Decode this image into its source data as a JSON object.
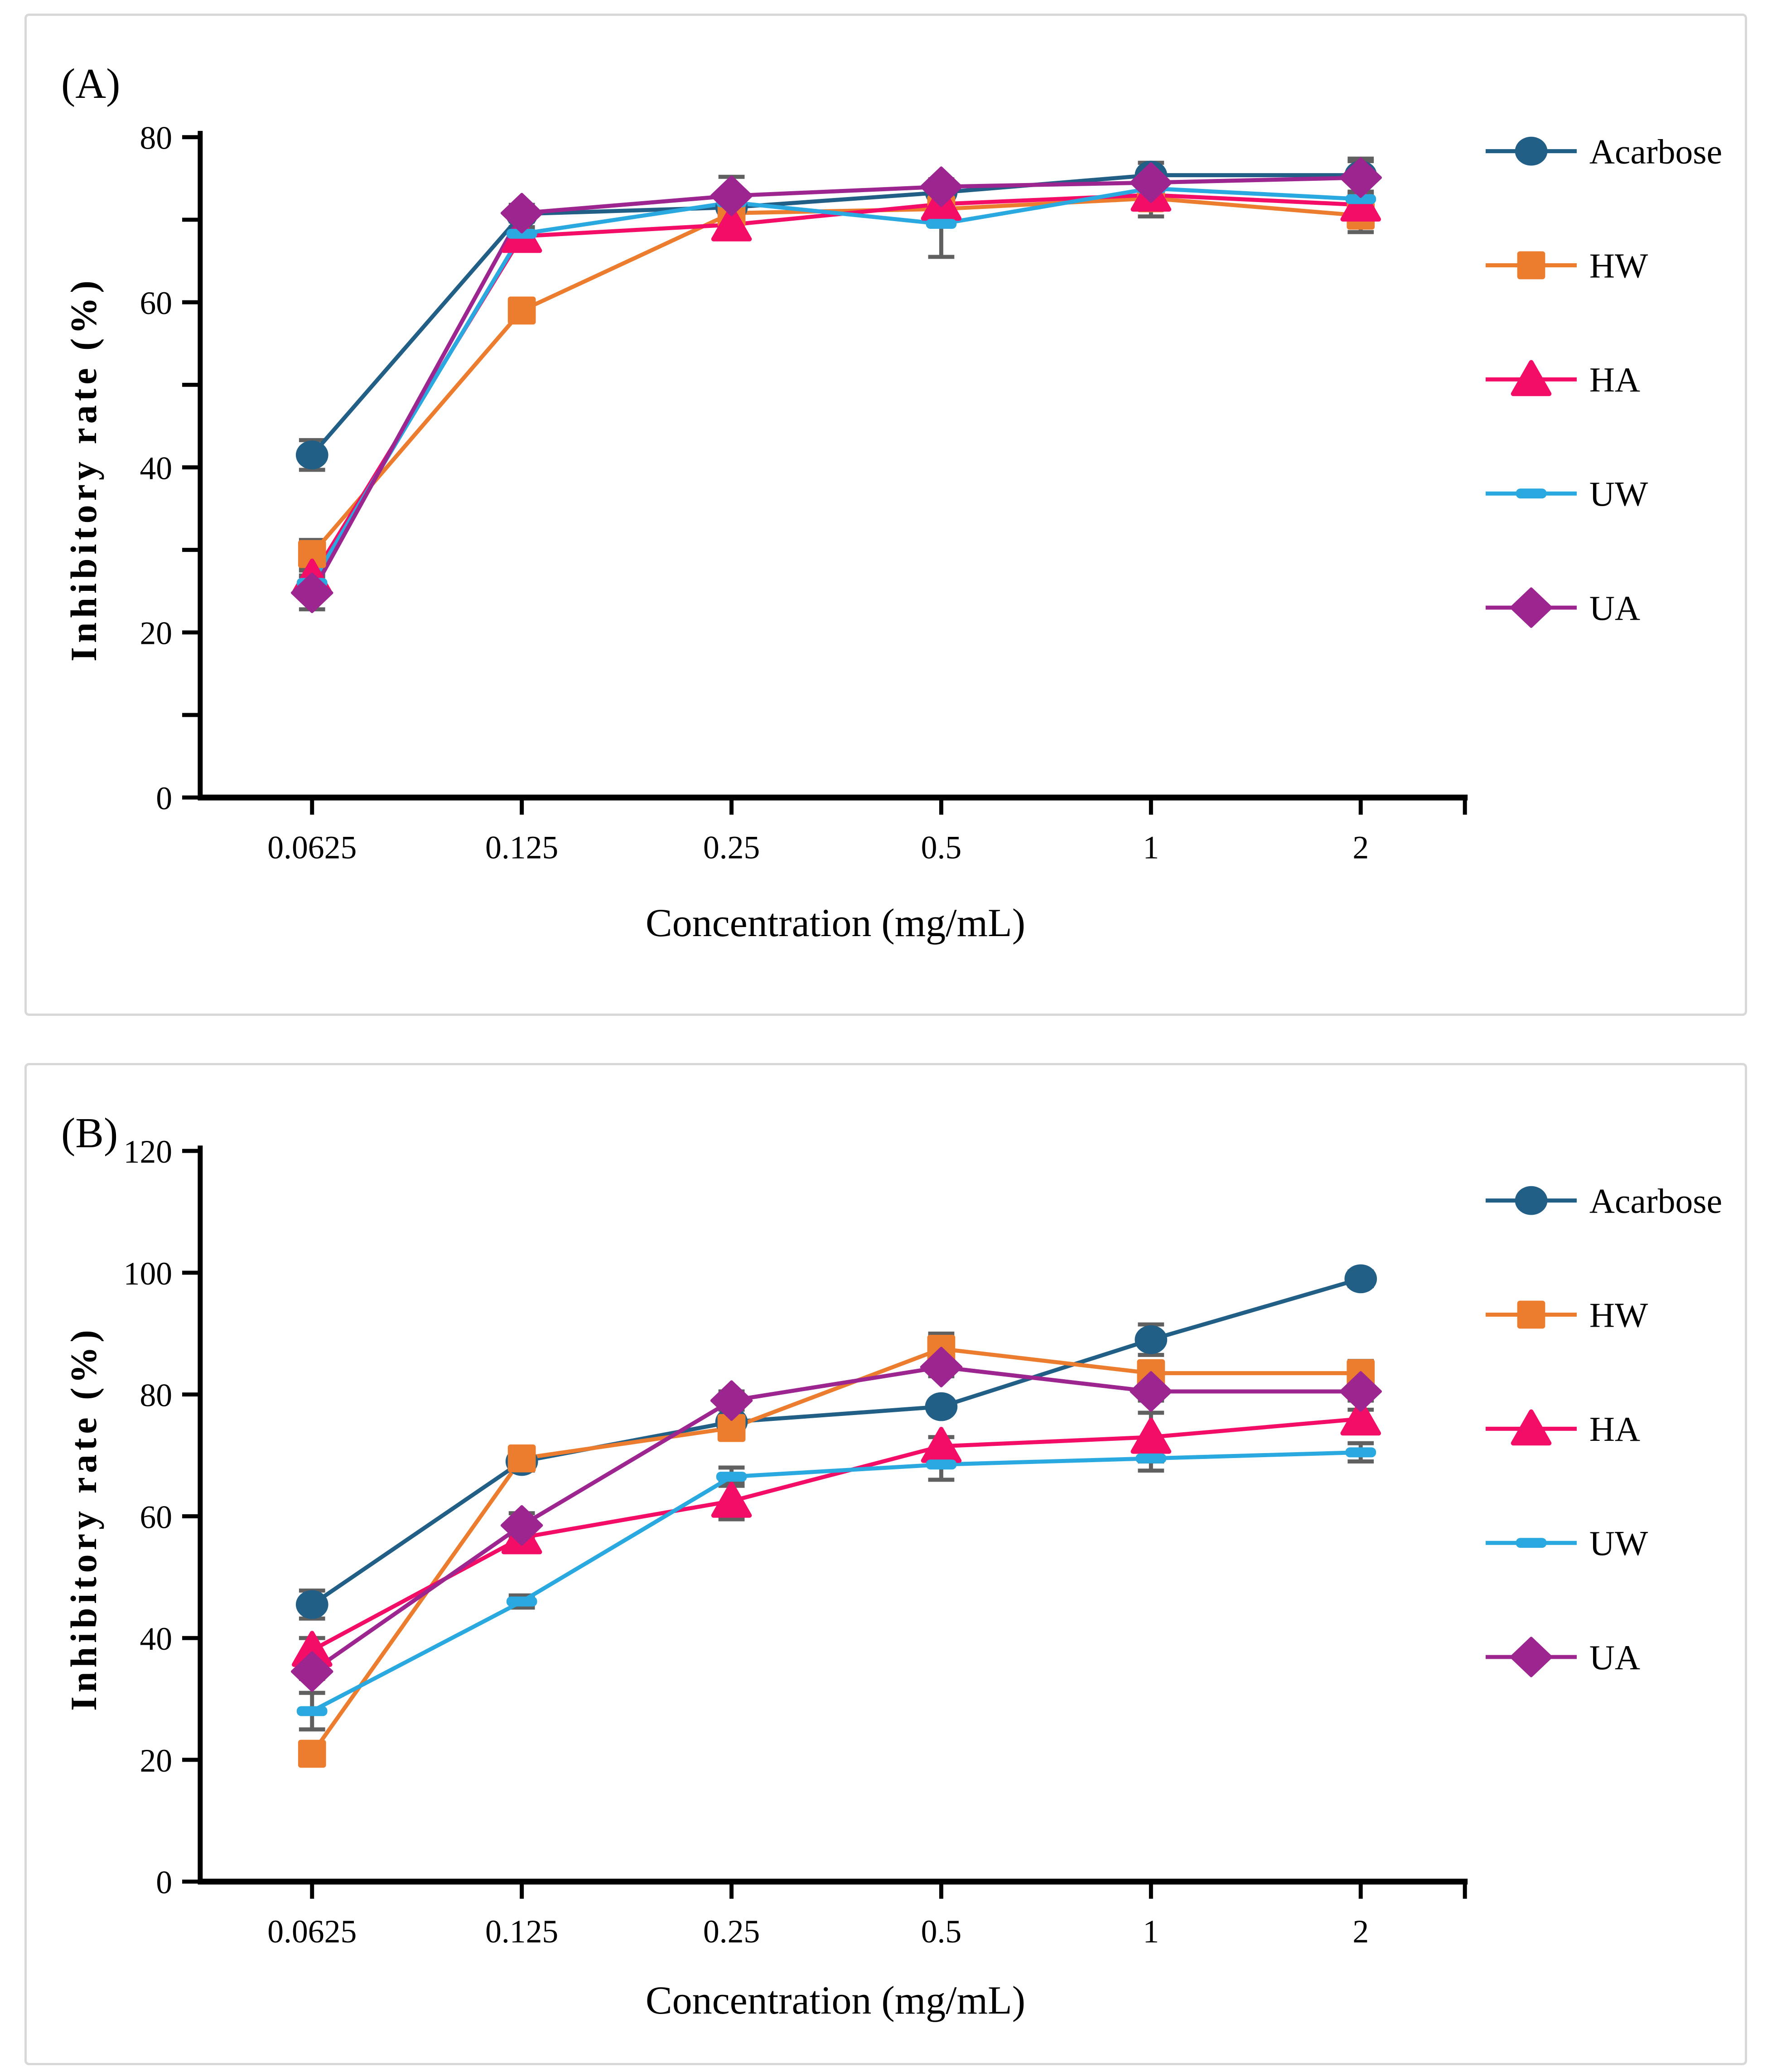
{
  "figure": {
    "panel_a": {
      "label": "(A)",
      "x_title": "Concentration (mg/mL)",
      "y_title": "Inhibitory rate (%)"
    },
    "panel_b": {
      "label": "(B)",
      "x_title": "Concentration (mg/mL)",
      "y_title": "Inhibitory rate (%)"
    }
  },
  "colors": {
    "axis": "#000000",
    "error_bar": "#606060",
    "panel_border": "#D8D8D8",
    "acarbose": "#215F86",
    "hw": "#EC7D2F",
    "ha": "#F30D66",
    "uw": "#29A9E0",
    "ua": "#9C2590"
  },
  "chart_data": [
    {
      "type": "line",
      "title": "(A)",
      "xlabel": "Concentration (mg/mL)",
      "ylabel": "Inhibitory rate (%)",
      "categories": [
        "0.0625",
        "0.125",
        "0.25",
        "0.5",
        "1",
        "2"
      ],
      "ylim": [
        0,
        80
      ],
      "yticks": [
        0,
        20,
        40,
        60,
        80
      ],
      "minor_yticks": [
        10,
        30,
        50,
        70
      ],
      "grid": false,
      "legend_position": "right",
      "error_bars": true,
      "series": [
        {
          "name": "Acarbose",
          "marker": "circle",
          "color": "#215F86",
          "values": [
            41.5,
            70.7,
            71.5,
            73.3,
            75.4,
            75.4
          ],
          "errors": [
            1.8,
            0.9,
            0.8,
            0.8,
            1.5,
            2.0
          ]
        },
        {
          "name": "HW",
          "marker": "square",
          "color": "#EC7D2F",
          "values": [
            29.5,
            59.0,
            70.8,
            71.3,
            72.6,
            70.5
          ],
          "errors": [
            1.7,
            0.9,
            0.8,
            0.8,
            2.2,
            2.0
          ]
        },
        {
          "name": "HA",
          "marker": "triangle",
          "color": "#F30D66",
          "values": [
            26.6,
            68.0,
            69.4,
            71.9,
            73.0,
            71.8
          ],
          "errors": [
            0.9,
            1.0,
            0.8,
            0.8,
            0.8,
            1.0
          ]
        },
        {
          "name": "UW",
          "marker": "dash",
          "color": "#29A9E0",
          "values": [
            26.0,
            68.3,
            72.1,
            69.5,
            73.8,
            72.5
          ],
          "errors": [
            0.9,
            0.8,
            0.8,
            4.0,
            0.8,
            0.8
          ]
        },
        {
          "name": "UA",
          "marker": "diamond",
          "color": "#9C2590",
          "values": [
            24.8,
            70.8,
            72.9,
            74.0,
            74.5,
            75.1
          ],
          "errors": [
            2.0,
            1.0,
            2.3,
            0.9,
            0.8,
            2.0
          ]
        }
      ]
    },
    {
      "type": "line",
      "title": "(B)",
      "xlabel": "Concentration (mg/mL)",
      "ylabel": "Inhibitory rate (%)",
      "categories": [
        "0.0625",
        "0.125",
        "0.25",
        "0.5",
        "1",
        "2"
      ],
      "ylim": [
        0,
        120
      ],
      "yticks": [
        0,
        20,
        40,
        60,
        80,
        100,
        120
      ],
      "minor_yticks": [],
      "grid": false,
      "legend_position": "right",
      "error_bars": true,
      "series": [
        {
          "name": "Acarbose",
          "marker": "circle",
          "color": "#215F86",
          "values": [
            45.5,
            69.0,
            75.5,
            78.0,
            89.0,
            99.0
          ],
          "errors": [
            2.3,
            1.5,
            1.0,
            1.0,
            2.5,
            1.2
          ]
        },
        {
          "name": "HW",
          "marker": "square",
          "color": "#EC7D2F",
          "values": [
            21.0,
            69.5,
            74.5,
            87.5,
            83.5,
            83.5
          ],
          "errors": [
            1.2,
            1.5,
            1.8,
            2.5,
            1.5,
            2.0
          ]
        },
        {
          "name": "HA",
          "marker": "triangle",
          "color": "#F30D66",
          "values": [
            38.0,
            56.5,
            62.5,
            71.5,
            73.0,
            76.0
          ],
          "errors": [
            2.0,
            1.5,
            3.0,
            1.5,
            4.0,
            1.5
          ]
        },
        {
          "name": "UW",
          "marker": "dash",
          "color": "#29A9E0",
          "values": [
            28.0,
            46.0,
            66.5,
            68.5,
            69.5,
            70.5
          ],
          "errors": [
            3.0,
            1.0,
            1.5,
            2.5,
            2.0,
            1.5
          ]
        },
        {
          "name": "UA",
          "marker": "diamond",
          "color": "#9C2590",
          "values": [
            34.5,
            58.5,
            79.0,
            84.5,
            80.5,
            80.5
          ],
          "errors": [
            1.2,
            2.0,
            1.5,
            1.5,
            1.5,
            1.5
          ]
        }
      ]
    }
  ]
}
